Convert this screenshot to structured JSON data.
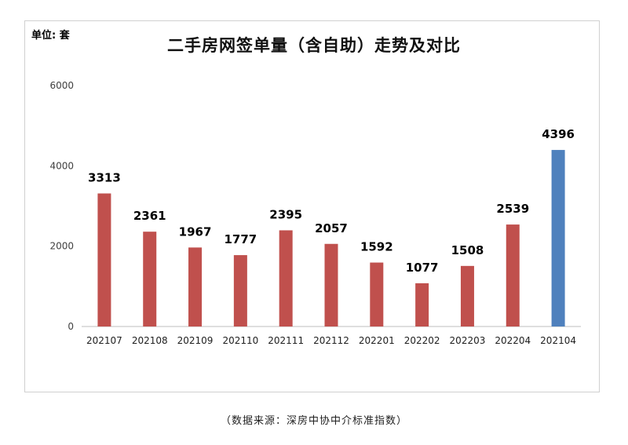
{
  "unit_label": "单位: 套",
  "source_note": "（数据来源：深房中协中介标准指数）",
  "chart_data": {
    "type": "bar",
    "title": "二手房网签单量（含自助）走势及对比",
    "categories": [
      "202107",
      "202108",
      "202109",
      "202110",
      "202111",
      "202112",
      "202201",
      "202202",
      "202203",
      "202204",
      "202104"
    ],
    "values": [
      3313,
      2361,
      1967,
      1777,
      2395,
      2057,
      1592,
      1077,
      1508,
      2539,
      4396
    ],
    "colors": [
      "#c0504d",
      "#c0504d",
      "#c0504d",
      "#c0504d",
      "#c0504d",
      "#c0504d",
      "#c0504d",
      "#c0504d",
      "#c0504d",
      "#c0504d",
      "#4f81bd"
    ],
    "ylim": [
      0,
      6000
    ],
    "yticks": [
      0,
      2000,
      4000,
      6000
    ],
    "data_labels": true,
    "grid": false,
    "legend": "none",
    "xlabel": "",
    "ylabel": ""
  }
}
